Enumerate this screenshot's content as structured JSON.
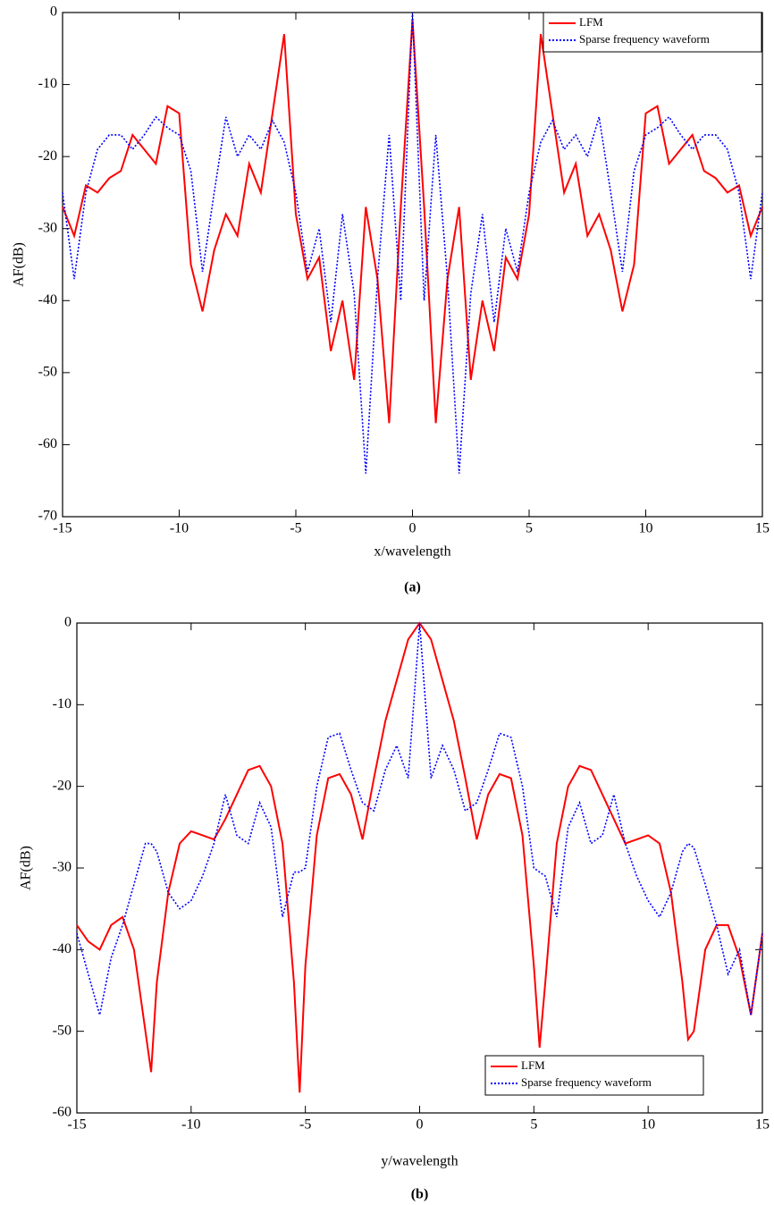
{
  "chart_data": [
    {
      "type": "line",
      "xlabel": "x/wavelength",
      "ylabel": "AF(dB)",
      "caption": "(a)",
      "x": [
        -15,
        -14.5,
        -14,
        -13.5,
        -13,
        -12.5,
        -12,
        -11.5,
        -11,
        -10.5,
        -10,
        -9.5,
        -9,
        -8.5,
        -8,
        -7.5,
        -7,
        -6.5,
        -6,
        -5.5,
        -5,
        -4.5,
        -4,
        -3.5,
        -3,
        -2.5,
        -2,
        -1.5,
        -1,
        -0.5,
        0,
        0.5,
        1,
        1.5,
        2,
        2.5,
        3,
        3.5,
        4,
        4.5,
        5,
        5.5,
        6,
        6.5,
        7,
        7.5,
        8,
        8.5,
        9,
        9.5,
        10,
        10.5,
        11,
        11.5,
        12,
        12.5,
        13,
        13.5,
        14,
        14.5,
        15
      ],
      "series": [
        {
          "name": "LFM",
          "color": "#ff0000",
          "line_style": "solid",
          "values": [
            -27,
            -31,
            -24,
            -25,
            -23,
            -22,
            -17,
            -19,
            -21,
            -13,
            -14,
            -35,
            -41.5,
            -33,
            -28,
            -31,
            -21,
            -25,
            -14,
            -3,
            -28,
            -37,
            -34,
            -47,
            -40,
            -51,
            -27,
            -37,
            -57,
            -27,
            -1,
            -27,
            -57,
            -37,
            -27,
            -51,
            -40,
            -47,
            -34,
            -37,
            -28,
            -3,
            -14,
            -25,
            -21,
            -31,
            -28,
            -33,
            -41.5,
            -35,
            -14,
            -13,
            -21,
            -19,
            -17,
            -22,
            -23,
            -25,
            -24,
            -31,
            -27
          ]
        },
        {
          "name": "Sparse frequency waveform",
          "color": "#0000ff",
          "line_style": "dotted",
          "values": [
            -25,
            -37,
            -25,
            -19,
            -17,
            -17,
            -19,
            -17,
            -14.5,
            -16,
            -17,
            -22,
            -36,
            -25,
            -14.5,
            -20,
            -17,
            -19,
            -15,
            -18,
            -25,
            -36,
            -30,
            -43,
            -28,
            -39,
            -64,
            -37,
            -17,
            -40,
            0,
            -40,
            -17,
            -37,
            -64,
            -39,
            -28,
            -43,
            -30,
            -36,
            -25,
            -18,
            -15,
            -19,
            -17,
            -20,
            -14.5,
            -25,
            -36,
            -22,
            -17,
            -16,
            -14.5,
            -17,
            -19,
            -17,
            -17,
            -19,
            -25,
            -37,
            -25
          ]
        }
      ],
      "xlim": [
        -15,
        15
      ],
      "ylim": [
        -70,
        0
      ],
      "xticks": [
        -15,
        -10,
        -5,
        0,
        5,
        10,
        15
      ],
      "yticks": [
        0,
        -10,
        -20,
        -30,
        -40,
        -50,
        -60,
        -70
      ],
      "legend": "upper right"
    },
    {
      "type": "line",
      "xlabel": "y/wavelength",
      "ylabel": "AF(dB)",
      "caption": "(b)",
      "x": [
        -15,
        -14.5,
        -14,
        -13.5,
        -13,
        -12.5,
        -12,
        -11.75,
        -11.5,
        -11,
        -10.5,
        -10,
        -9.5,
        -9,
        -8.5,
        -8,
        -7.5,
        -7,
        -6.5,
        -6,
        -5.5,
        -5.25,
        -5,
        -4.5,
        -4,
        -3.5,
        -3,
        -2.5,
        -2,
        -1.5,
        -1,
        -0.5,
        0,
        0.5,
        1,
        1.5,
        2,
        2.5,
        3,
        3.5,
        4,
        4.5,
        5,
        5.25,
        5.5,
        6,
        6.5,
        7,
        7.5,
        8,
        8.5,
        9,
        9.5,
        10,
        10.5,
        11,
        11.5,
        11.75,
        12,
        12.5,
        13,
        13.5,
        14,
        14.5,
        15
      ],
      "series": [
        {
          "name": "LFM",
          "color": "#ff0000",
          "line_style": "solid",
          "values": [
            -37,
            -39,
            -40,
            -37,
            -36,
            -40,
            -50,
            -55,
            -44,
            -33,
            -27,
            -25.5,
            -26,
            -26.5,
            -24,
            -21,
            -18,
            -17.5,
            -20,
            -27,
            -44,
            -57.5,
            -42,
            -26,
            -19,
            -18.5,
            -21,
            -26.5,
            -19,
            -12,
            -7,
            -2,
            0,
            -2,
            -7,
            -12,
            -19,
            -26.5,
            -21,
            -18.5,
            -19,
            -26,
            -42,
            -52,
            -44,
            -27,
            -20,
            -17.5,
            -18,
            -21,
            -24,
            -27,
            -26.5,
            -26,
            -27,
            -33,
            -44,
            -51,
            -50,
            -40,
            -37,
            -37,
            -41,
            -48,
            -38
          ]
        },
        {
          "name": "Sparse frequency waveform",
          "color": "#0000ff",
          "line_style": "dotted",
          "values": [
            -38,
            -43,
            -48,
            -41,
            -37,
            -32,
            -27,
            -27,
            -28,
            -33,
            -35,
            -34,
            -31,
            -27,
            -21,
            -26,
            -27,
            -22,
            -25,
            -36,
            -30.5,
            -30.5,
            -30,
            -20,
            -14,
            -13.5,
            -18,
            -22,
            -23,
            -18,
            -15,
            -19,
            0,
            -19,
            -15,
            -18,
            -23,
            -22,
            -18,
            -13.5,
            -14,
            -20,
            -30,
            -30.5,
            -31,
            -36,
            -25,
            -22,
            -27,
            -26,
            -21,
            -27,
            -31,
            -34,
            -36,
            -33,
            -28,
            -27,
            -27.5,
            -32,
            -37,
            -43,
            -40,
            -48,
            -38
          ]
        }
      ],
      "xlim": [
        -15,
        15
      ],
      "ylim": [
        -60,
        0
      ],
      "xticks": [
        -15,
        -10,
        -5,
        0,
        5,
        10,
        15
      ],
      "yticks": [
        0,
        -10,
        -20,
        -30,
        -40,
        -50,
        -60
      ],
      "legend": "lower right"
    }
  ]
}
